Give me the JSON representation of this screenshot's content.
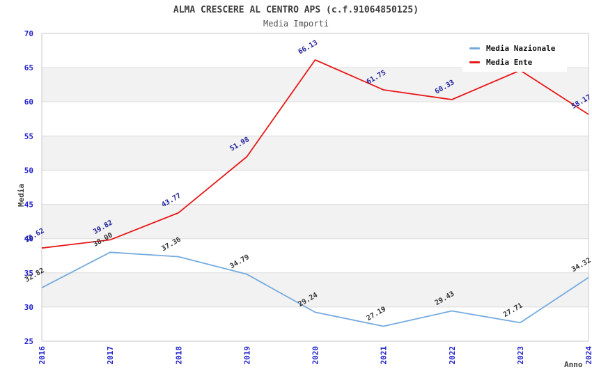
{
  "title": "ALMA CRESCERE AL CENTRO APS (c.f.91064850125)",
  "subtitle": "Media Importi",
  "axes": {
    "y_label": "Media",
    "x_label": "Anno"
  },
  "legend": {
    "items": [
      {
        "label": "Media Nazionale",
        "color": "#74aadf"
      },
      {
        "label": "Media Ente",
        "color": "#e81717"
      }
    ]
  },
  "colors": {
    "band": "#f2f2f2",
    "grid": "#dcdcdc",
    "frame": "#c9c9c9",
    "tick_label": "#2222cc",
    "title_text": "#3d3d3d",
    "nazionale_line": "#74aadf",
    "ente_line": "#e81717",
    "nazionale_label": "#333333",
    "ente_label": "#22229b"
  },
  "chart_data": {
    "type": "line",
    "title": "ALMA CRESCERE AL CENTRO APS (c.f.91064850125)",
    "subtitle": "Media Importi",
    "xlabel": "Anno",
    "ylabel": "Media",
    "x": [
      2016,
      2017,
      2018,
      2019,
      2020,
      2021,
      2022,
      2023,
      2024
    ],
    "series": [
      {
        "name": "Media Nazionale",
        "color": "#74aadf",
        "label_color": "#333333",
        "values": [
          32.82,
          38.0,
          37.36,
          34.79,
          29.24,
          27.19,
          29.43,
          27.71,
          34.32
        ]
      },
      {
        "name": "Media Ente",
        "color": "#e81717",
        "label_color": "#22229b",
        "values": [
          38.62,
          39.82,
          43.77,
          51.98,
          66.13,
          61.75,
          60.33,
          64.6,
          58.17
        ]
      }
    ],
    "ylim": [
      25,
      70
    ],
    "ytick_step": 5,
    "grid": "horizontal-bands",
    "legend_position": "top-right"
  }
}
